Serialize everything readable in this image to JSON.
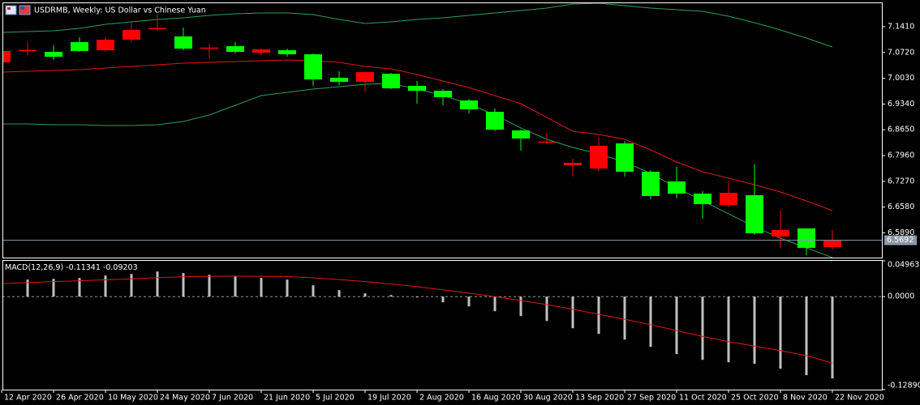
{
  "chart_data": [
    {
      "type": "candlestick",
      "title": "USDRMB, Weekly:  US Dollar vs Chinese Yuan",
      "categories": [
        "12 Apr 2020",
        null,
        "26 Apr 2020",
        null,
        "10 May 2020",
        null,
        "24 May 2020",
        null,
        "7 Jun 2020",
        null,
        "21 Jun 2020",
        null,
        "5 Jul 2020",
        null,
        "19 Jul 2020",
        null,
        "2 Aug 2020",
        null,
        "16 Aug 2020",
        null,
        "30 Aug 2020",
        null,
        "13 Sep 2020",
        null,
        "27 Sep 2020",
        null,
        "11 Oct 2020",
        null,
        "25 Oct 2020",
        null,
        "8 Nov 2020",
        null,
        "22 Nov 2020"
      ],
      "open": [
        7.0456,
        7.077,
        7.0738,
        7.0998,
        7.0781,
        7.1063,
        7.136,
        7.115,
        7.084,
        7.0889,
        7.0716,
        7.0781,
        7.0672,
        7.0043,
        6.9935,
        7.0152,
        6.9826,
        6.9696,
        6.9436,
        6.9132,
        6.8633,
        6.832,
        6.7701,
        6.7614,
        6.8286,
        6.7527,
        6.7267,
        6.6941,
        6.6638,
        6.6898,
        6.5792,
        6.6009,
        6.551
      ],
      "high": [
        7.0824,
        7.0998,
        7.0911,
        7.1128,
        7.1128,
        7.1518,
        7.1735,
        7.1388,
        7.0954,
        7.0998,
        7.0824,
        7.0824,
        7.0694,
        7.0217,
        7.0217,
        7.0174,
        6.9957,
        6.974,
        6.9479,
        6.9219,
        6.8655,
        6.8568,
        6.7874,
        6.8438,
        6.8351,
        6.7571,
        6.7657,
        6.7007,
        6.7267,
        6.7722,
        6.6486,
        6.6009,
        6.5966
      ],
      "low": [
        7.039,
        7.0651,
        7.0521,
        7.0738,
        7.0738,
        7.0998,
        7.1302,
        7.0781,
        7.0564,
        7.0694,
        7.0651,
        7.0607,
        6.9826,
        6.9848,
        6.9675,
        6.974,
        6.9349,
        6.9306,
        6.9089,
        6.8612,
        6.8091,
        6.8265,
        6.7397,
        6.7527,
        6.7397,
        6.679,
        6.6811,
        6.6269,
        6.6573,
        6.5835,
        6.5488,
        6.5293,
        6.5445
      ],
      "close": [
        7.0759,
        7.079,
        7.0607,
        7.0759,
        7.1063,
        7.1323,
        7.1375,
        7.0824,
        7.0852,
        7.0738,
        7.0803,
        7.0672,
        6.9999,
        6.9935,
        7.0195,
        6.9761,
        6.9696,
        6.9523,
        6.9197,
        6.8655,
        6.8417,
        6.8335,
        6.7766,
        6.8221,
        6.7527,
        6.6876,
        6.6941,
        6.6659,
        6.6963,
        6.5879,
        6.5966,
        6.5488,
        6.5692
      ],
      "up_color": "#ff0000",
      "down_color": "#00ff00",
      "series": [
        {
          "color": "#2e9e5b",
          "values": [
            7.1258,
            7.128,
            7.1302,
            7.1367,
            7.1475,
            7.154,
            7.1605,
            7.1649,
            7.1714,
            7.1757,
            7.1779,
            7.1779,
            7.1735,
            7.1605,
            7.1497,
            7.154,
            7.1605,
            7.1649,
            7.1714,
            7.1779,
            7.1844,
            7.1909,
            7.2017,
            7.2039,
            7.1974,
            7.1909,
            7.1866,
            7.1822,
            7.1692,
            7.1518,
            7.1323,
            7.1106,
            7.0868
          ]
        },
        {
          "color": "#e01818",
          "values": [
            7.0195,
            7.0217,
            7.0239,
            7.026,
            7.0304,
            7.0347,
            7.0391,
            7.0434,
            7.0456,
            7.0477,
            7.0499,
            7.0521,
            7.0499,
            7.0456,
            7.0347,
            7.0282,
            7.013,
            6.9957,
            6.9783,
            6.9566,
            6.9349,
            6.8981,
            6.8612,
            6.8525,
            6.8395,
            6.8113,
            6.7788,
            6.7528,
            6.7354,
            6.718,
            6.6985,
            6.6747,
            6.6486
          ]
        },
        {
          "color": "#2e9e5b",
          "values": [
            6.8807,
            6.8807,
            6.8786,
            6.8786,
            6.8764,
            6.8764,
            6.8786,
            6.8872,
            6.9046,
            6.9306,
            6.9566,
            6.9653,
            6.974,
            6.9805,
            6.987,
            6.9891,
            6.974,
            6.9566,
            6.9349,
            6.9046,
            6.8699,
            6.8395,
            6.8178,
            6.8004,
            6.7788,
            6.7484,
            6.7094,
            6.6747,
            6.64,
            6.6053,
            6.5749,
            6.5488,
            6.5228
          ]
        }
      ],
      "ylim": [
        6.5228,
        7.2061
      ],
      "yticks": [
        {
          "value": 7.141,
          "label": "7.1410"
        },
        {
          "value": 7.072,
          "label": "7.0720"
        },
        {
          "value": 7.003,
          "label": "7.0030"
        },
        {
          "value": 6.934,
          "label": "6.9340"
        },
        {
          "value": 6.865,
          "label": "6.8650"
        },
        {
          "value": 6.796,
          "label": "6.7960"
        },
        {
          "value": 6.727,
          "label": "6.7270"
        },
        {
          "value": 6.658,
          "label": "6.6580"
        },
        {
          "value": 6.589,
          "label": "6.5890"
        }
      ],
      "grid": false
    },
    {
      "type": "macd",
      "title": "MACD(12,26,9)",
      "series": [
        {
          "type": "bar",
          "color": "#c0c0c0",
          "values": [
            0.0225,
            0.0236,
            0.0247,
            0.0258,
            0.0292,
            0.0314,
            0.0348,
            0.0326,
            0.0303,
            0.0281,
            0.0258,
            0.0236,
            0.0157,
            0.009,
            0.0045,
            0.0022,
            -0.0011,
            -0.0079,
            -0.0135,
            -0.0202,
            -0.0269,
            -0.0337,
            -0.0438,
            -0.0517,
            -0.0595,
            -0.0696,
            -0.0797,
            -0.0876,
            -0.091,
            -0.0932,
            -0.0999,
            -0.1089,
            -0.11341
          ]
        },
        {
          "type": "line",
          "color": "#e01818",
          "values": [
            0.018,
            0.0195,
            0.0208,
            0.022,
            0.0233,
            0.0247,
            0.0263,
            0.0275,
            0.0281,
            0.0284,
            0.0282,
            0.0277,
            0.0261,
            0.0237,
            0.0209,
            0.0175,
            0.0138,
            0.0094,
            0.0048,
            0.0,
            -0.0054,
            -0.011,
            -0.0176,
            -0.0244,
            -0.0314,
            -0.039,
            -0.0471,
            -0.0552,
            -0.0624,
            -0.0686,
            -0.0749,
            -0.0817,
            -0.09203
          ]
        }
      ],
      "ylim": [
        -0.1289,
        0.04963
      ],
      "yticks": [
        0.04963,
        {
          "value": 0,
          "label": "0.0000"
        },
        {
          "value": -0.1289,
          "label": "-0.12890"
        }
      ]
    }
  ]
}
